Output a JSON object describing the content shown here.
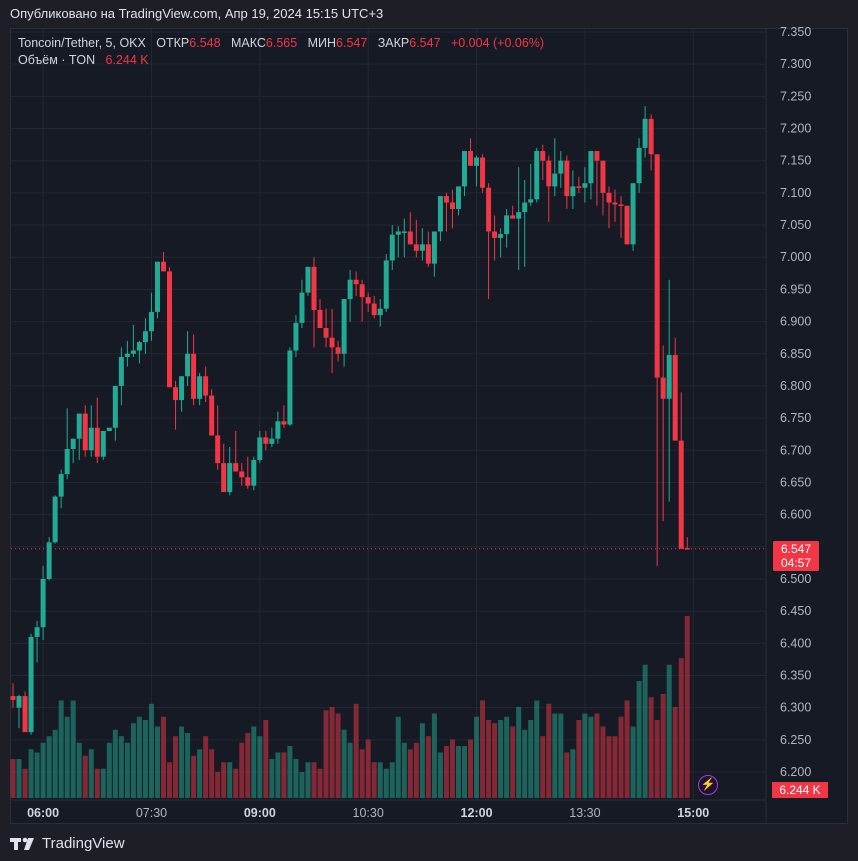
{
  "header": {
    "published": "Опубликовано на TradingView.com, Апр 19, 2024 15:15 UTC+3"
  },
  "legend": {
    "symbol": "Toncoin/Tether, 5, OKX",
    "open_label": "ОТКР",
    "open": "6.548",
    "high_label": "МАКС",
    "high": "6.565",
    "low_label": "МИН",
    "low": "6.547",
    "close_label": "ЗАКР",
    "close": "6.547",
    "change": "+0.004 (+0.06%)",
    "volume_label": "Объём · TON",
    "volume": "6.244 K"
  },
  "price_tag": {
    "price": "6.547",
    "countdown": "04:57"
  },
  "volume_tag": "6.244 K",
  "footer": {
    "brand": "TradingView"
  },
  "colors": {
    "up": "#22ab94",
    "down": "#f23645",
    "bg": "#161a25",
    "grid": "#242733",
    "axis_text": "#b2b5be"
  },
  "chart_data": {
    "type": "candlestick",
    "title": "Toncoin/Tether, 5, OKX",
    "xlabel": "",
    "ylabel": "",
    "ylim": [
      6.2,
      7.35
    ],
    "y_ticks": [
      "7.350",
      "7.300",
      "7.250",
      "7.200",
      "7.150",
      "7.100",
      "7.050",
      "7.000",
      "6.950",
      "6.900",
      "6.850",
      "6.800",
      "6.750",
      "6.700",
      "6.650",
      "6.600",
      "6.550",
      "6.500",
      "6.450",
      "6.400",
      "6.350",
      "6.300",
      "6.250",
      "6.200"
    ],
    "x_ticks": [
      {
        "label": "06:00",
        "bold": true,
        "index": 5
      },
      {
        "label": "07:30",
        "bold": false,
        "index": 23
      },
      {
        "label": "09:00",
        "bold": true,
        "index": 41
      },
      {
        "label": "10:30",
        "bold": false,
        "index": 59
      },
      {
        "label": "12:00",
        "bold": true,
        "index": 77
      },
      {
        "label": "13:30",
        "bold": false,
        "index": 95
      },
      {
        "label": "15:00",
        "bold": true,
        "index": 113
      }
    ],
    "grid": true,
    "current_price": 6.547,
    "candles": [
      [
        6.318,
        6.338,
        6.3,
        6.312
      ],
      [
        6.3,
        6.32,
        6.268,
        6.318
      ],
      [
        6.318,
        6.325,
        6.262,
        6.262
      ],
      [
        6.262,
        6.415,
        6.258,
        6.41
      ],
      [
        6.41,
        6.435,
        6.37,
        6.425
      ],
      [
        6.425,
        6.52,
        6.405,
        6.5
      ],
      [
        6.5,
        6.565,
        6.498,
        6.557
      ],
      [
        6.557,
        6.63,
        6.555,
        6.628
      ],
      [
        6.628,
        6.67,
        6.61,
        6.663
      ],
      [
        6.663,
        6.765,
        6.655,
        6.702
      ],
      [
        6.702,
        6.718,
        6.68,
        6.718
      ],
      [
        6.718,
        6.755,
        6.685,
        6.757
      ],
      [
        6.757,
        6.77,
        6.69,
        6.7
      ],
      [
        6.7,
        6.77,
        6.69,
        6.735
      ],
      [
        6.735,
        6.782,
        6.68,
        6.69
      ],
      [
        6.69,
        6.73,
        6.685,
        6.73
      ],
      [
        6.73,
        6.735,
        6.73,
        6.735
      ],
      [
        6.735,
        6.77,
        6.715,
        6.8
      ],
      [
        6.8,
        6.86,
        6.77,
        6.845
      ],
      [
        6.845,
        6.87,
        6.83,
        6.85
      ],
      [
        6.85,
        6.895,
        6.845,
        6.855
      ],
      [
        6.855,
        6.87,
        6.835,
        6.868
      ],
      [
        6.868,
        6.905,
        6.85,
        6.885
      ],
      [
        6.885,
        6.945,
        6.87,
        6.915
      ],
      [
        6.915,
        6.965,
        6.905,
        6.993
      ],
      [
        6.993,
        7.008,
        6.985,
        6.978
      ],
      [
        6.978,
        6.985,
        6.8,
        6.798
      ],
      [
        6.798,
        6.808,
        6.732,
        6.778
      ],
      [
        6.778,
        6.805,
        6.76,
        6.815
      ],
      [
        6.815,
        6.885,
        6.8,
        6.85
      ],
      [
        6.85,
        6.88,
        6.77,
        6.78
      ],
      [
        6.78,
        6.82,
        6.77,
        6.815
      ],
      [
        6.815,
        6.83,
        6.775,
        6.785
      ],
      [
        6.785,
        6.795,
        6.73,
        6.723
      ],
      [
        6.723,
        6.77,
        6.67,
        6.68
      ],
      [
        6.68,
        6.71,
        6.64,
        6.635
      ],
      [
        6.635,
        6.705,
        6.63,
        6.68
      ],
      [
        6.68,
        6.73,
        6.67,
        6.667
      ],
      [
        6.667,
        6.68,
        6.645,
        6.658
      ],
      [
        6.658,
        6.69,
        6.64,
        6.645
      ],
      [
        6.645,
        6.69,
        6.638,
        6.685
      ],
      [
        6.685,
        6.73,
        6.68,
        6.72
      ],
      [
        6.72,
        6.73,
        6.7,
        6.71
      ],
      [
        6.71,
        6.735,
        6.705,
        6.718
      ],
      [
        6.718,
        6.76,
        6.71,
        6.745
      ],
      [
        6.745,
        6.77,
        6.735,
        6.74
      ],
      [
        6.74,
        6.86,
        6.738,
        6.855
      ],
      [
        6.855,
        6.91,
        6.845,
        6.898
      ],
      [
        6.898,
        6.965,
        6.89,
        6.945
      ],
      [
        6.945,
        6.985,
        6.94,
        6.985
      ],
      [
        6.985,
        7.0,
        6.86,
        6.918
      ],
      [
        6.918,
        6.935,
        6.895,
        6.89
      ],
      [
        6.89,
        6.92,
        6.86,
        6.875
      ],
      [
        6.875,
        6.92,
        6.82,
        6.86
      ],
      [
        6.86,
        6.87,
        6.838,
        6.85
      ],
      [
        6.85,
        6.9,
        6.83,
        6.935
      ],
      [
        6.935,
        6.98,
        6.9,
        6.965
      ],
      [
        6.965,
        6.978,
        6.94,
        6.958
      ],
      [
        6.958,
        6.965,
        6.9,
        6.938
      ],
      [
        6.938,
        6.945,
        6.915,
        6.928
      ],
      [
        6.928,
        6.94,
        6.905,
        6.91
      ],
      [
        6.91,
        6.935,
        6.892,
        6.92
      ],
      [
        6.92,
        7.005,
        6.915,
        6.995
      ],
      [
        6.995,
        7.05,
        6.98,
        7.035
      ],
      [
        7.035,
        7.048,
        7.0,
        7.04
      ],
      [
        7.04,
        7.06,
        7.0,
        7.04
      ],
      [
        7.04,
        7.07,
        7.03,
        7.02
      ],
      [
        7.02,
        7.058,
        7.0,
        7.01
      ],
      [
        7.01,
        7.045,
        6.995,
        7.02
      ],
      [
        7.02,
        7.04,
        6.985,
        6.99
      ],
      [
        6.99,
        7.03,
        6.97,
        7.04
      ],
      [
        7.04,
        7.06,
        7.025,
        7.095
      ],
      [
        7.095,
        7.1,
        7.04,
        7.085
      ],
      [
        7.085,
        7.105,
        7.045,
        7.075
      ],
      [
        7.075,
        7.11,
        7.065,
        7.11
      ],
      [
        7.11,
        7.16,
        7.095,
        7.165
      ],
      [
        7.165,
        7.185,
        7.15,
        7.142
      ],
      [
        7.142,
        7.158,
        7.11,
        7.155
      ],
      [
        7.155,
        7.16,
        7.1,
        7.108
      ],
      [
        7.108,
        7.115,
        6.935,
        7.04
      ],
      [
        7.04,
        7.065,
        6.995,
        7.03
      ],
      [
        7.03,
        7.045,
        7.0,
        7.036
      ],
      [
        7.036,
        7.075,
        7.015,
        7.065
      ],
      [
        7.065,
        7.08,
        7.07,
        7.06
      ],
      [
        7.06,
        7.14,
        6.98,
        7.07
      ],
      [
        7.07,
        7.12,
        6.985,
        7.085
      ],
      [
        7.085,
        7.145,
        7.08,
        7.09
      ],
      [
        7.09,
        7.17,
        7.085,
        7.165
      ],
      [
        7.165,
        7.175,
        7.12,
        7.15
      ],
      [
        7.15,
        7.158,
        7.055,
        7.11
      ],
      [
        7.11,
        7.185,
        7.095,
        7.13
      ],
      [
        7.13,
        7.165,
        7.108,
        7.15
      ],
      [
        7.15,
        7.158,
        7.075,
        7.095
      ],
      [
        7.095,
        7.135,
        7.075,
        7.11
      ],
      [
        7.11,
        7.125,
        7.1,
        7.108
      ],
      [
        7.108,
        7.14,
        7.085,
        7.115
      ],
      [
        7.115,
        7.16,
        7.09,
        7.165
      ],
      [
        7.165,
        7.165,
        7.08,
        7.15
      ],
      [
        7.15,
        7.128,
        7.065,
        7.1
      ],
      [
        7.1,
        7.11,
        7.045,
        7.085
      ],
      [
        7.085,
        7.105,
        7.055,
        7.082
      ],
      [
        7.082,
        7.095,
        7.03,
        7.08
      ],
      [
        7.08,
        7.055,
        7.02,
        7.02
      ],
      [
        7.02,
        7.095,
        7.01,
        7.115
      ],
      [
        7.115,
        7.185,
        7.1,
        7.17
      ],
      [
        7.17,
        7.235,
        7.155,
        7.215
      ],
      [
        7.215,
        7.222,
        7.135,
        7.16
      ],
      [
        7.16,
        7.16,
        6.52,
        6.813
      ],
      [
        6.813,
        6.863,
        6.59,
        6.78
      ],
      [
        6.78,
        6.965,
        6.62,
        6.848
      ],
      [
        6.848,
        6.875,
        6.72,
        6.715
      ],
      [
        6.715,
        6.79,
        6.58,
        6.547
      ],
      [
        6.548,
        6.565,
        6.547,
        6.547
      ]
    ],
    "volumes": [
      12,
      12,
      9,
      15,
      14,
      17,
      19,
      21,
      30,
      25,
      30,
      17,
      13,
      15,
      9,
      9,
      17,
      21,
      19,
      17,
      23,
      25,
      24,
      29,
      22,
      25,
      11,
      19,
      22,
      20,
      13,
      15,
      19,
      15,
      8,
      11,
      11,
      9,
      17,
      20,
      22,
      19,
      24,
      12,
      14,
      14,
      16,
      12,
      8,
      11,
      11,
      9,
      27,
      28,
      26,
      21,
      17,
      29,
      15,
      18,
      11,
      11,
      9,
      11,
      25,
      17,
      15,
      17,
      23,
      19,
      26,
      14,
      16,
      18,
      16,
      16,
      18,
      25,
      30,
      24,
      23,
      24,
      25,
      22,
      28,
      21,
      24,
      30,
      19,
      29,
      26,
      26,
      14,
      15,
      24,
      26,
      25,
      26,
      22,
      19,
      19,
      25,
      30,
      22,
      36,
      41,
      31,
      24,
      32,
      41,
      28,
      43,
      56,
      32,
      60,
      32
    ],
    "volume_label": "Объём · TON",
    "last_volume": "6.244 K"
  }
}
